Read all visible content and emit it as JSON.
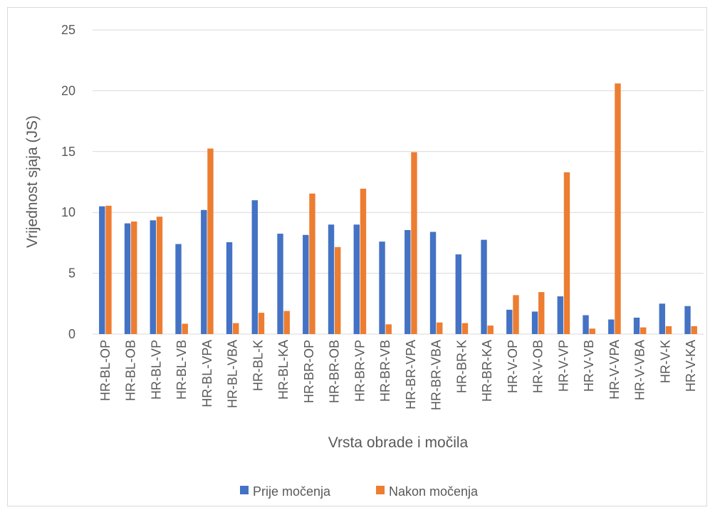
{
  "chart_data": {
    "type": "bar",
    "title": "",
    "xlabel": "Vrsta obrade i močila",
    "ylabel": "Vrijednost sjaja (JS)",
    "ylim": [
      0,
      25
    ],
    "yticks": [
      0,
      5,
      10,
      15,
      20,
      25
    ],
    "grid": true,
    "legend_position": "bottom",
    "categories": [
      "HR-BL-OP",
      "HR-BL-OB",
      "HR-BL-VP",
      "HR-BL-VB",
      "HR-BL-VPA",
      "HR-BL-VBA",
      "HR-BL-K",
      "HR-BL-KA",
      "HR-BR-OP",
      "HR-BR-OB",
      "HR-BR-VP",
      "HR-BR-VB",
      "HR-BR-VPA",
      "HR-BR-VBA",
      "HR-BR-K",
      "HR-BR-KA",
      "HR-V-OP",
      "HR-V-OB",
      "HR-V-VP",
      "HR-V-VB",
      "HR-V-VPA",
      "HR-V-VBA",
      "HR-V-K",
      "HR-V-KA"
    ],
    "series": [
      {
        "name": "Prije močenja",
        "color": "#4472C4",
        "values": [
          10.5,
          9.1,
          9.35,
          7.4,
          10.2,
          7.55,
          11.0,
          8.25,
          8.15,
          9.0,
          9.0,
          7.6,
          8.55,
          8.4,
          6.55,
          7.75,
          2.0,
          1.85,
          3.1,
          1.55,
          1.2,
          1.35,
          2.5,
          2.3
        ]
      },
      {
        "name": "Nakon močenja",
        "color": "#ED7D31",
        "values": [
          10.55,
          9.25,
          9.65,
          0.85,
          15.25,
          0.9,
          1.75,
          1.9,
          11.55,
          7.15,
          11.95,
          0.8,
          14.95,
          0.95,
          0.9,
          0.7,
          3.2,
          3.45,
          13.3,
          0.45,
          20.6,
          0.55,
          0.65,
          0.65
        ]
      }
    ]
  }
}
